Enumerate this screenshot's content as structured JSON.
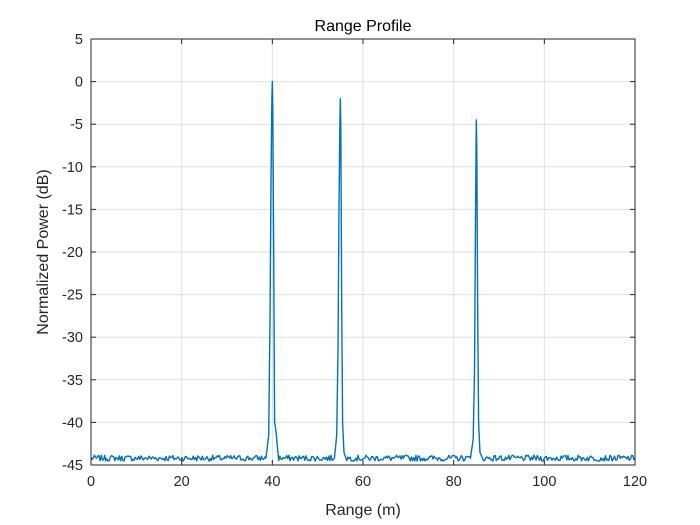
{
  "chart_data": {
    "type": "line",
    "title": "Range Profile",
    "xlabel": "Range (m)",
    "ylabel": "Normalized Power (dB)",
    "xlim": [
      0,
      120
    ],
    "ylim": [
      -45,
      5
    ],
    "xticks": [
      0,
      20,
      40,
      60,
      80,
      100,
      120
    ],
    "yticks": [
      5,
      0,
      -5,
      -10,
      -15,
      -20,
      -25,
      -30,
      -35,
      -40,
      -45
    ],
    "grid": true,
    "line_color": "#0072BD",
    "noise_floor": -44.2,
    "peaks": [
      {
        "x": 40,
        "y": 0
      },
      {
        "x": 55,
        "y": -2
      },
      {
        "x": 85,
        "y": -4.5
      }
    ],
    "series": [
      {
        "x": [
          0,
          38.6,
          39.2,
          39.5,
          39.7,
          39.9,
          40.0,
          40.1,
          40.3,
          40.5,
          40.8,
          41.4,
          53.7,
          54.2,
          54.5,
          54.7,
          54.9,
          55.0,
          55.1,
          55.3,
          55.5,
          55.8,
          56.4,
          83.7,
          84.3,
          84.6,
          84.8,
          84.95,
          85.0,
          85.1,
          85.3,
          85.5,
          85.8,
          86.4,
          120
        ],
        "y": [
          -44.2,
          -44.2,
          -41.5,
          -27,
          -12,
          -2,
          0,
          -3,
          -20,
          -40,
          -41,
          -44.2,
          -44.2,
          -41.5,
          -31,
          -15,
          -5,
          -2,
          -5,
          -26,
          -40,
          -43.5,
          -44.2,
          -44.2,
          -42,
          -34,
          -17,
          -7,
          -4.5,
          -8,
          -27,
          -40,
          -43.5,
          -44.2,
          -44.2
        ]
      }
    ]
  }
}
